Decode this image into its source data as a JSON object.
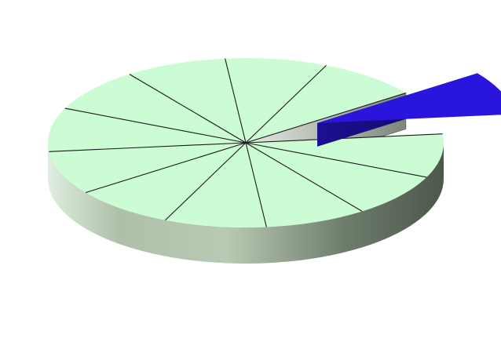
{
  "chart_data": {
    "type": "pie",
    "style": "3d-exploded",
    "slices": [
      {
        "value": 1,
        "color": "#ccfcd4",
        "exploded": false
      },
      {
        "value": 1,
        "color": "#ccfcd4",
        "exploded": false
      },
      {
        "value": 1,
        "color": "#ccfcd4",
        "exploded": false
      },
      {
        "value": 1,
        "color": "#ccfcd4",
        "exploded": false
      },
      {
        "value": 1,
        "color": "#ccfcd4",
        "exploded": false
      },
      {
        "value": 1,
        "color": "#ccfcd4",
        "exploded": false
      },
      {
        "value": 1,
        "color": "#ccfcd4",
        "exploded": false
      },
      {
        "value": 1,
        "color": "#ccfcd4",
        "exploded": false
      },
      {
        "value": 1,
        "color": "#ccfcd4",
        "exploded": false
      },
      {
        "value": 1,
        "color": "#ccfcd4",
        "exploded": false
      },
      {
        "value": 1,
        "color": "#ccfcd4",
        "exploded": false
      },
      {
        "value": 1,
        "color": "#2a15dc",
        "exploded": true
      }
    ],
    "colors": {
      "slice": "#ccfcd4",
      "highlight": "#2a15dc",
      "divider": "#1a1a1a"
    },
    "title": "",
    "legend": "none"
  }
}
